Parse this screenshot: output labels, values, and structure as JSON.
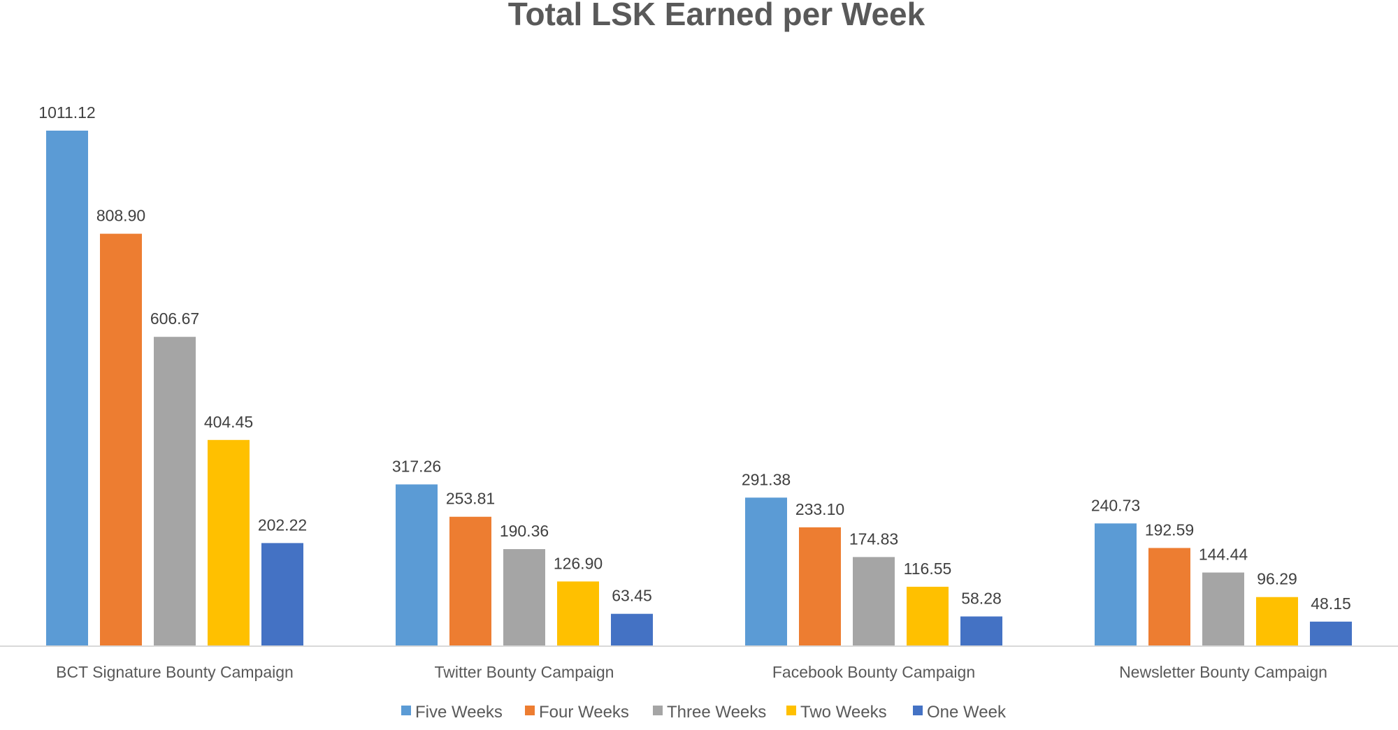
{
  "chart_data": {
    "type": "bar",
    "title": "Total LSK Earned per Week",
    "xlabel": "",
    "ylabel": "",
    "categories": [
      "BCT Signature Bounty Campaign",
      "Twitter Bounty Campaign",
      "Facebook Bounty Campaign",
      "Newsletter Bounty Campaign"
    ],
    "series": [
      {
        "name": "Five Weeks",
        "color": "#5B9BD5",
        "values": [
          1011.12,
          317.26,
          291.38,
          240.73
        ],
        "labels": [
          "1011.12",
          "317.26",
          "291.38",
          "240.73"
        ]
      },
      {
        "name": "Four Weeks",
        "color": "#ED7D31",
        "values": [
          808.9,
          253.81,
          233.1,
          192.59
        ],
        "labels": [
          "808.90",
          "253.81",
          "233.10",
          "192.59"
        ]
      },
      {
        "name": "Three Weeks",
        "color": "#A5A5A5",
        "values": [
          606.67,
          190.36,
          174.83,
          144.44
        ],
        "labels": [
          "606.67",
          "190.36",
          "174.83",
          "144.44"
        ]
      },
      {
        "name": "Two Weeks",
        "color": "#FFC000",
        "values": [
          404.45,
          126.9,
          116.55,
          96.29
        ],
        "labels": [
          "404.45",
          "126.90",
          "116.55",
          "96.29"
        ]
      },
      {
        "name": "One Week",
        "color": "#4472C4",
        "values": [
          202.22,
          63.45,
          58.28,
          48.15
        ],
        "labels": [
          "202.22",
          "63.45",
          "58.28",
          "48.15"
        ]
      }
    ],
    "ylim": [
      0,
      1011.12
    ],
    "grid": false,
    "legend_position": "bottom",
    "axis_color": "#D9D9D9"
  }
}
